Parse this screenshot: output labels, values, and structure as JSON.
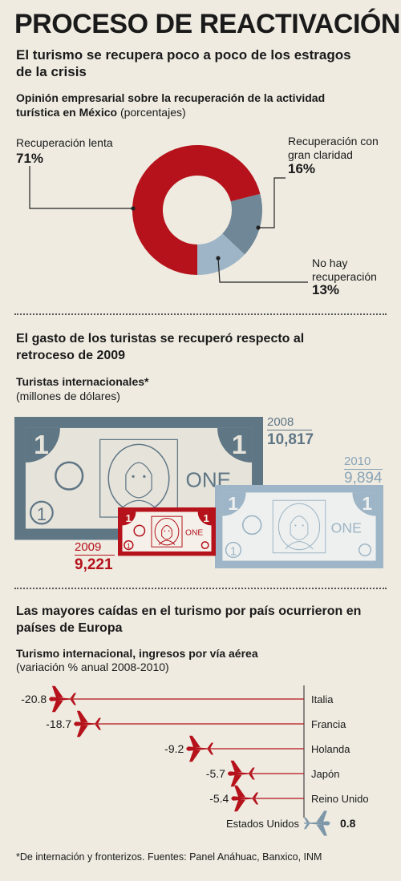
{
  "header": {
    "title": "PROCESO DE REACTIVACIÓN",
    "subtitle": "El turismo se recupera poco a poco de los estragos de la crisis"
  },
  "section1": {
    "heading_bold": "Opinión empresarial sobre la recuperación de la actividad turística en México",
    "heading_normal": "(porcentajes)"
  },
  "section2": {
    "heading": "El gasto de los turistas se recuperó respecto al retroceso de 2009",
    "chart_title": "Turistas internacionales*",
    "chart_unit": "(millones de dólares)",
    "bill_text": "ONE",
    "bill_digit": "1"
  },
  "section3": {
    "heading": "Las mayores caídas en el turismo por país ocurrieron en países de Europa",
    "chart_title": "Turismo internacional,  ingresos por vía aérea",
    "chart_unit": "(variación % anual 2008-2010)"
  },
  "footnote": "*De internación y fronterizos. Fuentes: Panel Anáhuac, Banxico, INM",
  "colors": {
    "red": "#b5121b",
    "slate": "#6f8797",
    "light_blue": "#9db5c6",
    "dark_bill": "#5f7685",
    "plane_blue": "#7d97a9",
    "bg": "#efebe1"
  },
  "chart_data": [
    {
      "type": "pie",
      "categories": [
        "Recuperación lenta",
        "Recuperación con gran claridad",
        "No hay recuperación"
      ],
      "values": [
        71,
        16,
        13
      ],
      "value_labels": [
        "71%",
        "16%",
        "13%"
      ],
      "colors": [
        "#b5121b",
        "#6f8797",
        "#9db5c6"
      ],
      "donut": true
    },
    {
      "type": "bar",
      "categories": [
        "2008",
        "2009",
        "2010"
      ],
      "values": [
        10817,
        9221,
        9894
      ],
      "value_labels": [
        "10,817",
        "9,221",
        "9,894"
      ],
      "colors": [
        "#5f7685",
        "#b5121b",
        "#9db5c6"
      ]
    },
    {
      "type": "bar",
      "orientation": "horizontal",
      "categories": [
        "Italia",
        "Francia",
        "Holanda",
        "Japón",
        "Reino Unido",
        "Estados Unidos"
      ],
      "values": [
        -20.8,
        -18.7,
        -9.2,
        -5.7,
        -5.4,
        0.8
      ],
      "value_labels": [
        "-20.8",
        "-18.7",
        "-9.2",
        "-5.7",
        "-5.4",
        "0.8"
      ]
    }
  ]
}
